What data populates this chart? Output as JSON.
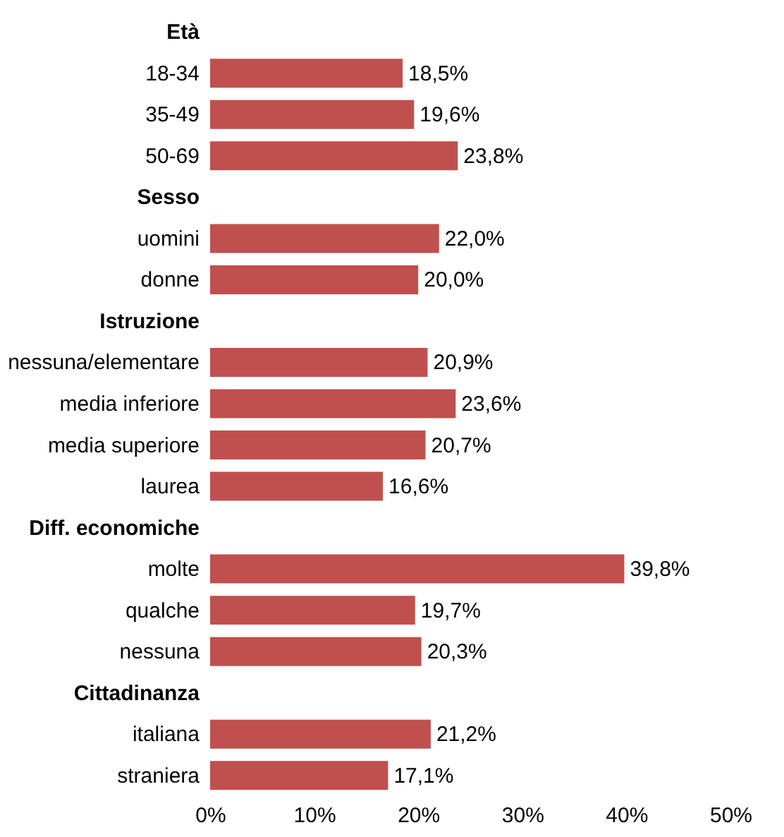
{
  "chart_data": {
    "type": "bar",
    "orientation": "horizontal",
    "categories": [
      "Età",
      "18-34",
      "35-49",
      "50-69",
      "Sesso",
      "uomini",
      "donne",
      "Istruzione",
      "nessuna/elementare",
      "media inferiore",
      "media superiore",
      "laurea",
      "Diff. economiche",
      "molte",
      "qualche",
      "nessuna",
      "Cittadinanza",
      "italiana",
      "straniera"
    ],
    "values": [
      null,
      18.5,
      19.6,
      23.8,
      null,
      22.0,
      20.0,
      null,
      20.9,
      23.6,
      20.7,
      16.6,
      null,
      39.8,
      19.7,
      20.3,
      null,
      21.2,
      17.1
    ],
    "value_labels": [
      null,
      "18,5%",
      "19,6%",
      "23,8%",
      null,
      "22,0%",
      "20,0%",
      null,
      "20,9%",
      "23,6%",
      "20,7%",
      "16,6%",
      null,
      "39,8%",
      "19,7%",
      "20,3%",
      null,
      "21,2%",
      "17,1%"
    ],
    "color": "#c0504d",
    "xlim": [
      0,
      50
    ],
    "xticks": [
      {
        "value": 0,
        "label": "0%"
      },
      {
        "value": 10,
        "label": "10%"
      },
      {
        "value": 20,
        "label": "20%"
      },
      {
        "value": 30,
        "label": "30%"
      },
      {
        "value": 40,
        "label": "40%"
      },
      {
        "value": 50,
        "label": "50%"
      }
    ],
    "grid": false
  }
}
